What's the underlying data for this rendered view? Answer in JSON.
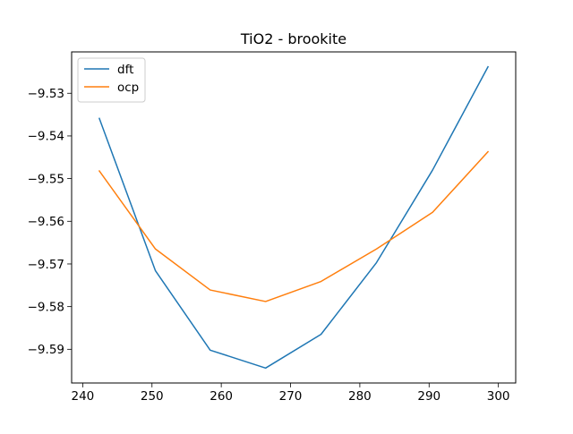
{
  "chart_data": {
    "type": "line",
    "title": "TiO2 - brookite",
    "xlabel": "",
    "ylabel": "",
    "x": [
      242.4,
      250.5,
      258.4,
      266.4,
      274.4,
      282.4,
      290.5,
      298.5
    ],
    "series": [
      {
        "name": "dft",
        "color": "#1f77b4",
        "values": [
          -9.5359,
          -9.5716,
          -9.5902,
          -9.5944,
          -9.5865,
          -9.5697,
          -9.548,
          -9.5238
        ]
      },
      {
        "name": "ocp",
        "color": "#ff7f0e",
        "values": [
          -9.5482,
          -9.5665,
          -9.5761,
          -9.5788,
          -9.5741,
          -9.5665,
          -9.5579,
          -9.5437
        ]
      }
    ],
    "xlim": [
      238.4,
      302.5
    ],
    "ylim": [
      -9.5979,
      -9.5203
    ],
    "xticks": [
      240,
      250,
      260,
      270,
      280,
      290,
      300
    ],
    "xtick_labels": [
      "240",
      "250",
      "260",
      "270",
      "280",
      "290",
      "300"
    ],
    "yticks": [
      -9.59,
      -9.58,
      -9.57,
      -9.56,
      -9.55,
      -9.54,
      -9.53
    ],
    "ytick_labels": [
      "−9.59",
      "−9.58",
      "−9.57",
      "−9.56",
      "−9.55",
      "−9.54",
      "−9.53"
    ],
    "grid": false,
    "legend_position": "top-left"
  }
}
